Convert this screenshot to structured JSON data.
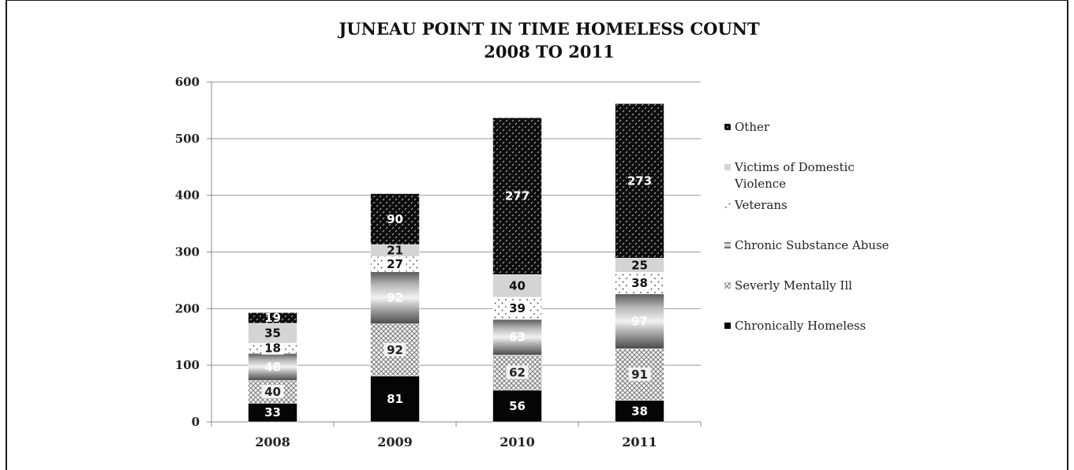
{
  "chart_data": {
    "type": "bar",
    "stacked": true,
    "title": "JUNEAU POINT IN TIME HOMELESS COUNT",
    "subtitle": "2008 TO 2011",
    "categories": [
      "2008",
      "2009",
      "2010",
      "2011"
    ],
    "ylim": [
      0,
      600
    ],
    "yticks": [
      0,
      100,
      200,
      300,
      400,
      500,
      600
    ],
    "grid": true,
    "legend_position": "right",
    "series": [
      {
        "name": "Chronically Homeless",
        "values": [
          33,
          81,
          56,
          38
        ],
        "pattern": "solid-black"
      },
      {
        "name": "Severly Mentally Ill",
        "values": [
          40,
          92,
          62,
          91
        ],
        "pattern": "crosshatch"
      },
      {
        "name": "Chronic Substance Abuse",
        "values": [
          48,
          92,
          63,
          97
        ],
        "pattern": "gradient-gray"
      },
      {
        "name": "Veterans",
        "values": [
          18,
          27,
          39,
          38
        ],
        "pattern": "dots"
      },
      {
        "name": "Victims of Domestic Violence",
        "values": [
          35,
          21,
          40,
          25
        ],
        "pattern": "light-gray"
      },
      {
        "name": "Other",
        "values": [
          19,
          90,
          277,
          273
        ],
        "pattern": "black-dots"
      }
    ],
    "legend_order": [
      "Other",
      "Victims of Domestic Violence",
      "Veterans",
      "Chronic Substance Abuse",
      "Severly Mentally Ill",
      "Chronically Homeless"
    ]
  }
}
